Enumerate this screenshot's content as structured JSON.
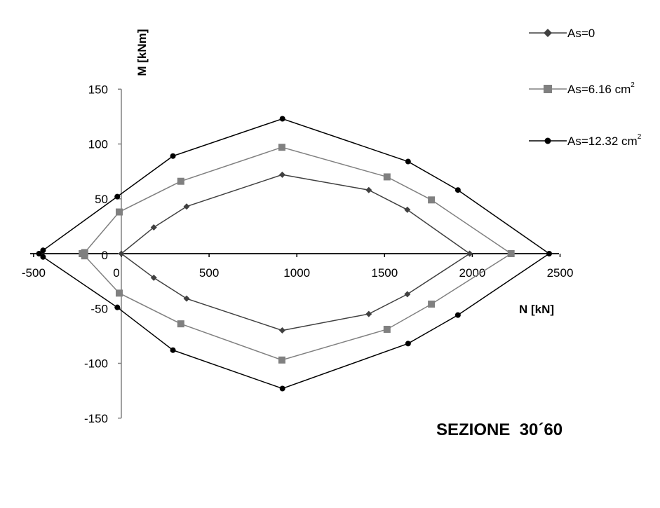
{
  "chart_data": {
    "type": "line",
    "title": "",
    "xlabel": "N [kN]",
    "ylabel": "M [kNm]",
    "xlim": [
      -500,
      2500
    ],
    "ylim": [
      -150,
      150
    ],
    "x_ticks": [
      "-500",
      "0",
      "500",
      "1000",
      "1500",
      "2000",
      "2500"
    ],
    "x_tick_values": [
      -500,
      0,
      500,
      1000,
      1500,
      2000,
      2500
    ],
    "y_ticks": [
      "150",
      "100",
      "50",
      "0",
      "-50",
      "-100",
      "-150"
    ],
    "y_tick_values": [
      150,
      100,
      50,
      0,
      -50,
      -100,
      -150
    ],
    "legend_position": "top-right",
    "annotation": "SEZIONE  30´60",
    "series": [
      {
        "name": "As=0",
        "name_base": "As=0",
        "name_sup": "",
        "color": "#404040",
        "marker": "diamond",
        "points": [
          [
            0,
            0
          ],
          [
            185,
            24
          ],
          [
            372,
            43
          ],
          [
            917,
            72
          ],
          [
            1410,
            58
          ],
          [
            1630,
            40
          ],
          [
            1985,
            0
          ],
          [
            1630,
            -37
          ],
          [
            1410,
            -55
          ],
          [
            917,
            -70
          ],
          [
            372,
            -41
          ],
          [
            185,
            -22
          ],
          [
            0,
            0
          ]
        ]
      },
      {
        "name": "As=6.16 cm2",
        "name_base": "As=6.16 cm",
        "name_sup": "2",
        "color": "#808080",
        "marker": "square",
        "points": [
          [
            -223,
            0
          ],
          [
            -209,
            1
          ],
          [
            -12,
            38
          ],
          [
            339,
            66
          ],
          [
            915,
            97
          ],
          [
            1514,
            70
          ],
          [
            1767,
            49
          ],
          [
            2221,
            0
          ],
          [
            1767,
            -46
          ],
          [
            1514,
            -69
          ],
          [
            915,
            -97
          ],
          [
            339,
            -64
          ],
          [
            -12,
            -36
          ],
          [
            -209,
            -2
          ],
          [
            -223,
            0
          ]
        ]
      },
      {
        "name": "As=12.32 cm2",
        "name_base": "As=12.32 cm",
        "name_sup": "2",
        "color": "#000000",
        "marker": "circle",
        "points": [
          [
            -469,
            0
          ],
          [
            -446,
            3
          ],
          [
            -23,
            52
          ],
          [
            294,
            89
          ],
          [
            918,
            123
          ],
          [
            1634,
            84
          ],
          [
            1918,
            58
          ],
          [
            2438,
            0
          ],
          [
            1918,
            -56
          ],
          [
            1634,
            -82
          ],
          [
            918,
            -123
          ],
          [
            294,
            -88
          ],
          [
            -23,
            -49
          ],
          [
            -446,
            -3
          ],
          [
            -469,
            0
          ]
        ]
      }
    ]
  }
}
